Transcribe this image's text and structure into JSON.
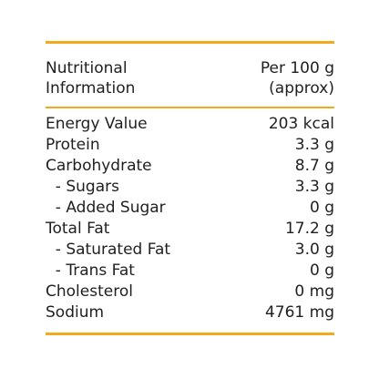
{
  "header": {
    "title_line1": "Nutritional",
    "title_line2": "Information",
    "unit_line1": "Per 100 g",
    "unit_line2": "(approx)"
  },
  "rows": [
    {
      "label": "Energy Value",
      "value": "203 kcal"
    },
    {
      "label": "Protein",
      "value": "3.3 g"
    },
    {
      "label": "Carbohydrate",
      "value": "8.7 g"
    },
    {
      "label": "  - Sugars",
      "value": "3.3 g"
    },
    {
      "label": "  - Added Sugar",
      "value": "0 g"
    },
    {
      "label": "Total Fat",
      "value": "17.2 g"
    },
    {
      "label": "  - Saturated Fat",
      "value": "3.0 g"
    },
    {
      "label": "  - Trans Fat",
      "value": "0 g"
    },
    {
      "label": "Cholesterol",
      "value": "0 mg"
    },
    {
      "label": "Sodium",
      "value": "4761 mg"
    }
  ],
  "colors": {
    "accent": "#f2a91a",
    "text": "#1f1f1f"
  }
}
